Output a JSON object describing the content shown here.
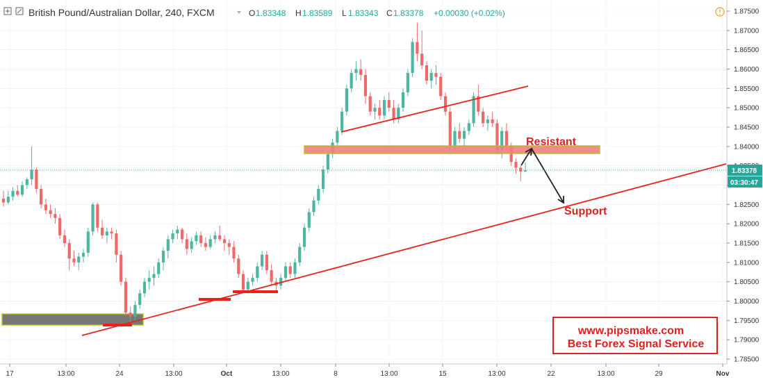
{
  "header": {
    "symbol_title": "British Pound/Australian Dollar, 240, FXCM",
    "open_label": "O",
    "open_value": "1.83348",
    "high_label": "H",
    "high_value": "1.83589",
    "low_label": "L",
    "low_value": "1.83343",
    "close_label": "C",
    "close_value": "1.83378",
    "change_value": "+0.00030 (+0.02%)"
  },
  "price_axis": {
    "ticks": [
      "1.87500",
      "1.87000",
      "1.86500",
      "1.86000",
      "1.85500",
      "1.85000",
      "1.84500",
      "1.84000",
      "1.83500",
      "1.83000",
      "1.82500",
      "1.82000",
      "1.81500",
      "1.81000",
      "1.80500",
      "1.80000",
      "1.79500",
      "1.79000",
      "1.78500"
    ],
    "current_price_label": "1.83378",
    "countdown_label": "03:30:47"
  },
  "time_axis": {
    "ticks": [
      "17",
      "13:00",
      "24",
      "13:00",
      "Oct",
      "13:00",
      "8",
      "13:00",
      "15",
      "13:00",
      "22",
      "13:00",
      "29",
      "Nov"
    ]
  },
  "annotations": {
    "resistant_label": "Resistant",
    "support_label": "Support",
    "watermark_line1": "www.pipsmake.com",
    "watermark_line2": "Best Forex Signal Service"
  },
  "colors": {
    "up": "#4db6a0",
    "down": "#ee6a6a",
    "trendline": "#e8211d",
    "zone_fill": "#f08080",
    "zone_border": "#b8c020",
    "support_zone_fill": "#777777",
    "price_tag": "#26a69a",
    "watermark_border": "#e0201c"
  },
  "chart_data": {
    "type": "candlestick",
    "title": "British Pound/Australian Dollar, 240, FXCM",
    "ylim": [
      1.7845,
      1.8765
    ],
    "y_ticks": [
      1.875,
      1.87,
      1.865,
      1.86,
      1.855,
      1.85,
      1.845,
      1.84,
      1.835,
      1.83,
      1.825,
      1.82,
      1.815,
      1.81,
      1.805,
      1.8,
      1.795,
      1.79,
      1.785
    ],
    "x_ticks": [
      "17",
      "13:00",
      "24",
      "13:00",
      "Oct",
      "13:00",
      "8",
      "13:00",
      "15",
      "13:00",
      "22",
      "13:00",
      "29",
      "Nov"
    ],
    "last_price": 1.83378,
    "candles": [
      [
        1.8265,
        1.8285,
        1.8245,
        1.8255
      ],
      [
        1.8255,
        1.8285,
        1.825,
        1.827
      ],
      [
        1.827,
        1.8295,
        1.826,
        1.8285
      ],
      [
        1.8285,
        1.83,
        1.827,
        1.8275
      ],
      [
        1.8275,
        1.831,
        1.827,
        1.83
      ],
      [
        1.83,
        1.832,
        1.829,
        1.8315
      ],
      [
        1.8315,
        1.84,
        1.83,
        1.834
      ],
      [
        1.834,
        1.8345,
        1.828,
        1.829
      ],
      [
        1.829,
        1.83,
        1.824,
        1.825
      ],
      [
        1.825,
        1.8265,
        1.8225,
        1.8235
      ],
      [
        1.8235,
        1.825,
        1.8215,
        1.8225
      ],
      [
        1.8225,
        1.824,
        1.82,
        1.8215
      ],
      [
        1.8215,
        1.8225,
        1.816,
        1.817
      ],
      [
        1.817,
        1.8185,
        1.814,
        1.815
      ],
      [
        1.815,
        1.816,
        1.808,
        1.811
      ],
      [
        1.811,
        1.813,
        1.809,
        1.81
      ],
      [
        1.81,
        1.8125,
        1.808,
        1.8115
      ],
      [
        1.8115,
        1.8135,
        1.81,
        1.8125
      ],
      [
        1.8125,
        1.819,
        1.8115,
        1.818
      ],
      [
        1.818,
        1.8255,
        1.817,
        1.825
      ],
      [
        1.825,
        1.8255,
        1.818,
        1.819
      ],
      [
        1.819,
        1.821,
        1.816,
        1.817
      ],
      [
        1.817,
        1.819,
        1.815,
        1.818
      ],
      [
        1.818,
        1.819,
        1.816,
        1.8175
      ],
      [
        1.8175,
        1.8185,
        1.81,
        1.812
      ],
      [
        1.812,
        1.813,
        1.804,
        1.805
      ],
      [
        1.805,
        1.806,
        1.796,
        1.797
      ],
      [
        1.797,
        1.7985,
        1.7945,
        1.796
      ],
      [
        1.796,
        1.8,
        1.795,
        1.799
      ],
      [
        1.799,
        1.803,
        1.798,
        1.802
      ],
      [
        1.802,
        1.806,
        1.801,
        1.805
      ],
      [
        1.805,
        1.808,
        1.803,
        1.806
      ],
      [
        1.806,
        1.809,
        1.804,
        1.807
      ],
      [
        1.807,
        1.811,
        1.806,
        1.81
      ],
      [
        1.81,
        1.814,
        1.808,
        1.813
      ],
      [
        1.813,
        1.817,
        1.811,
        1.816
      ],
      [
        1.816,
        1.8185,
        1.815,
        1.8175
      ],
      [
        1.8175,
        1.8195,
        1.816,
        1.8185
      ],
      [
        1.8185,
        1.819,
        1.815,
        1.816
      ],
      [
        1.816,
        1.8175,
        1.812,
        1.8135
      ],
      [
        1.8135,
        1.8165,
        1.8125,
        1.8155
      ],
      [
        1.8155,
        1.818,
        1.8145,
        1.817
      ],
      [
        1.817,
        1.818,
        1.814,
        1.815
      ],
      [
        1.815,
        1.8165,
        1.813,
        1.814
      ],
      [
        1.814,
        1.817,
        1.8135,
        1.816
      ],
      [
        1.816,
        1.818,
        1.815,
        1.817
      ],
      [
        1.817,
        1.8195,
        1.8155,
        1.816
      ],
      [
        1.816,
        1.817,
        1.813,
        1.815
      ],
      [
        1.815,
        1.816,
        1.812,
        1.814
      ],
      [
        1.814,
        1.8155,
        1.81,
        1.811
      ],
      [
        1.811,
        1.812,
        1.806,
        1.807
      ],
      [
        1.807,
        1.808,
        1.802,
        1.803
      ],
      [
        1.803,
        1.806,
        1.802,
        1.805
      ],
      [
        1.805,
        1.807,
        1.804,
        1.806
      ],
      [
        1.806,
        1.81,
        1.805,
        1.809
      ],
      [
        1.809,
        1.813,
        1.808,
        1.812
      ],
      [
        1.812,
        1.813,
        1.807,
        1.808
      ],
      [
        1.808,
        1.8095,
        1.804,
        1.805
      ],
      [
        1.805,
        1.806,
        1.802,
        1.804
      ],
      [
        1.804,
        1.807,
        1.803,
        1.806
      ],
      [
        1.806,
        1.81,
        1.805,
        1.809
      ],
      [
        1.809,
        1.81,
        1.806,
        1.807
      ],
      [
        1.807,
        1.811,
        1.806,
        1.81
      ],
      [
        1.81,
        1.815,
        1.809,
        1.814
      ],
      [
        1.814,
        1.82,
        1.813,
        1.819
      ],
      [
        1.819,
        1.824,
        1.818,
        1.823
      ],
      [
        1.823,
        1.827,
        1.822,
        1.826
      ],
      [
        1.826,
        1.83,
        1.825,
        1.829
      ],
      [
        1.829,
        1.835,
        1.828,
        1.834
      ],
      [
        1.834,
        1.839,
        1.833,
        1.838
      ],
      [
        1.838,
        1.842,
        1.837,
        1.841
      ],
      [
        1.841,
        1.845,
        1.84,
        1.844
      ],
      [
        1.844,
        1.85,
        1.843,
        1.849
      ],
      [
        1.849,
        1.856,
        1.848,
        1.855
      ],
      [
        1.855,
        1.86,
        1.854,
        1.859
      ],
      [
        1.859,
        1.862,
        1.857,
        1.86
      ],
      [
        1.86,
        1.8625,
        1.857,
        1.8585
      ],
      [
        1.8585,
        1.86,
        1.851,
        1.853
      ],
      [
        1.853,
        1.854,
        1.848,
        1.849
      ],
      [
        1.849,
        1.851,
        1.847,
        1.85
      ],
      [
        1.85,
        1.852,
        1.847,
        1.848
      ],
      [
        1.848,
        1.853,
        1.847,
        1.852
      ],
      [
        1.852,
        1.854,
        1.849,
        1.85
      ],
      [
        1.85,
        1.852,
        1.846,
        1.847
      ],
      [
        1.847,
        1.851,
        1.846,
        1.85
      ],
      [
        1.85,
        1.855,
        1.849,
        1.854
      ],
      [
        1.854,
        1.86,
        1.853,
        1.859
      ],
      [
        1.859,
        1.868,
        1.858,
        1.867
      ],
      [
        1.867,
        1.872,
        1.862,
        1.864
      ],
      [
        1.864,
        1.87,
        1.86,
        1.861
      ],
      [
        1.861,
        1.862,
        1.856,
        1.857
      ],
      [
        1.857,
        1.86,
        1.855,
        1.859
      ],
      [
        1.859,
        1.861,
        1.856,
        1.858
      ],
      [
        1.858,
        1.859,
        1.852,
        1.853
      ],
      [
        1.853,
        1.854,
        1.848,
        1.849
      ],
      [
        1.849,
        1.85,
        1.839,
        1.84
      ],
      [
        1.84,
        1.845,
        1.839,
        1.844
      ],
      [
        1.844,
        1.846,
        1.841,
        1.842
      ],
      [
        1.842,
        1.845,
        1.84,
        1.844
      ],
      [
        1.844,
        1.847,
        1.843,
        1.846
      ],
      [
        1.846,
        1.854,
        1.845,
        1.853
      ],
      [
        1.853,
        1.856,
        1.848,
        1.849
      ],
      [
        1.849,
        1.85,
        1.845,
        1.846
      ],
      [
        1.846,
        1.848,
        1.844,
        1.847
      ],
      [
        1.847,
        1.849,
        1.845,
        1.846
      ],
      [
        1.846,
        1.847,
        1.838,
        1.839
      ],
      [
        1.839,
        1.845,
        1.837,
        1.844
      ],
      [
        1.844,
        1.846,
        1.839,
        1.84
      ],
      [
        1.84,
        1.841,
        1.835,
        1.836
      ],
      [
        1.836,
        1.837,
        1.833,
        1.8345
      ],
      [
        1.8345,
        1.835,
        1.831,
        1.8335
      ],
      [
        1.83348,
        1.83589,
        1.83343,
        1.83378
      ]
    ]
  }
}
